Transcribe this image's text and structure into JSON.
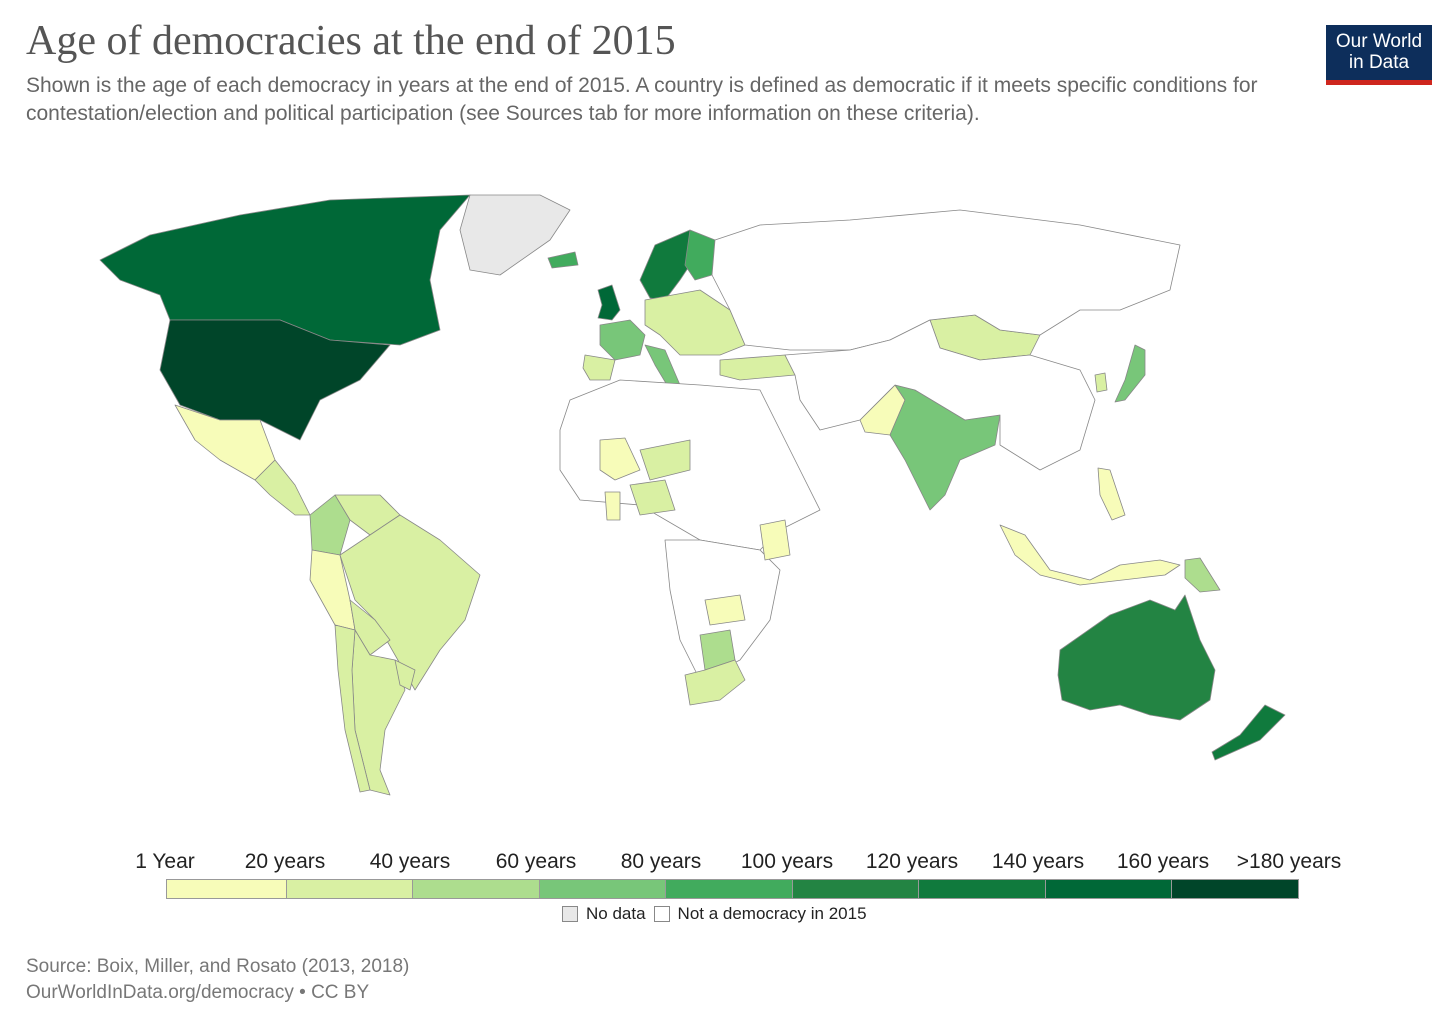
{
  "header": {
    "title": "Age of democracies at the end of 2015",
    "subtitle": "Shown is the age of each democracy in years at the end of 2015. A country is defined as democratic if it meets specific conditions for contestation/election and political participation (see Sources tab for more information on these criteria).",
    "logo_line1": "Our World",
    "logo_line2": "in Data"
  },
  "legend": {
    "labels": [
      "1 Year",
      "20 years",
      "40 years",
      "60 years",
      "80 years",
      "100 years",
      "120 years",
      "140 years",
      "160 years",
      ">180 years"
    ],
    "bins": [
      {
        "color": "#f7fcb9"
      },
      {
        "color": "#d9f0a3"
      },
      {
        "color": "#addd8e"
      },
      {
        "color": "#78c679"
      },
      {
        "color": "#41ab5d"
      },
      {
        "color": "#238443"
      },
      {
        "color": "#107a3d"
      },
      {
        "color": "#006837"
      },
      {
        "color": "#004529"
      }
    ],
    "no_data_label": "No data",
    "not_democracy_label": "Not a democracy in 2015",
    "no_data_color": "#e8e8e8",
    "not_democracy_color": "#ffffff"
  },
  "regions": [
    {
      "name": "Canada",
      "bin": 7
    },
    {
      "name": "United States",
      "bin": 8
    },
    {
      "name": "Greenland",
      "bin": "nodata"
    },
    {
      "name": "Mexico",
      "bin": 0
    },
    {
      "name": "Central America",
      "bin": 1
    },
    {
      "name": "Colombia",
      "bin": 2
    },
    {
      "name": "Venezuela",
      "bin": 1
    },
    {
      "name": "Peru",
      "bin": 0
    },
    {
      "name": "Brazil",
      "bin": 1
    },
    {
      "name": "Bolivia",
      "bin": 1
    },
    {
      "name": "Argentina",
      "bin": 1
    },
    {
      "name": "Chile",
      "bin": 1
    },
    {
      "name": "Uruguay",
      "bin": 1
    },
    {
      "name": "United Kingdom",
      "bin": 7
    },
    {
      "name": "France",
      "bin": 3
    },
    {
      "name": "Spain",
      "bin": 1
    },
    {
      "name": "Scandinavia",
      "bin": 6
    },
    {
      "name": "Finland",
      "bin": 4
    },
    {
      "name": "Iceland",
      "bin": 4
    },
    {
      "name": "Eastern Europe",
      "bin": 1
    },
    {
      "name": "Italy",
      "bin": 3
    },
    {
      "name": "Turkey",
      "bin": 1
    },
    {
      "name": "Mongolia",
      "bin": 1
    },
    {
      "name": "India",
      "bin": 3
    },
    {
      "name": "Pakistan",
      "bin": 0
    },
    {
      "name": "Japan",
      "bin": 3
    },
    {
      "name": "South Korea",
      "bin": 1
    },
    {
      "name": "Philippines",
      "bin": 0
    },
    {
      "name": "Indonesia",
      "bin": 0
    },
    {
      "name": "Papua New Guinea",
      "bin": 2
    },
    {
      "name": "Australia",
      "bin": 5
    },
    {
      "name": "New Zealand",
      "bin": 6
    },
    {
      "name": "Mali",
      "bin": 0
    },
    {
      "name": "Niger",
      "bin": 1
    },
    {
      "name": "Nigeria",
      "bin": 1
    },
    {
      "name": "Ghana",
      "bin": 0
    },
    {
      "name": "Kenya",
      "bin": 0
    },
    {
      "name": "Zambia",
      "bin": 0
    },
    {
      "name": "Botswana",
      "bin": 2
    },
    {
      "name": "South Africa",
      "bin": 1
    }
  ],
  "footer": {
    "source": "Source: Boix, Miller, and Rosato (2013, 2018)",
    "url_line": "OurWorldInData.org/democracy • CC BY"
  }
}
